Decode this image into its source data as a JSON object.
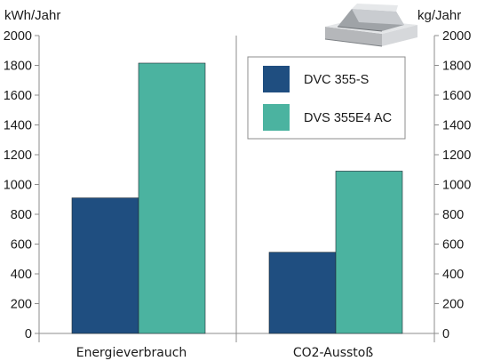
{
  "chart_data": {
    "type": "bar",
    "categories": [
      "Energieverbrauch",
      "CO2-Ausstoß"
    ],
    "series": [
      {
        "name": "DVC 355-S",
        "values": [
          910,
          545
        ],
        "color": "#1f4e80"
      },
      {
        "name": "DVS 355E4 AC",
        "values": [
          1815,
          1090
        ],
        "color": "#4bb3a0"
      }
    ],
    "ylabel_left": "kWh/Jahr",
    "ylabel_right": "kg/Jahr",
    "ylim": [
      0,
      2000
    ],
    "yticks": [
      "0",
      "200",
      "400",
      "600",
      "800",
      "1000",
      "1200",
      "1400",
      "1600",
      "1800",
      "2000"
    ],
    "grid": false,
    "legend_position": "top-right",
    "product_image": "roof-fan-unit"
  }
}
